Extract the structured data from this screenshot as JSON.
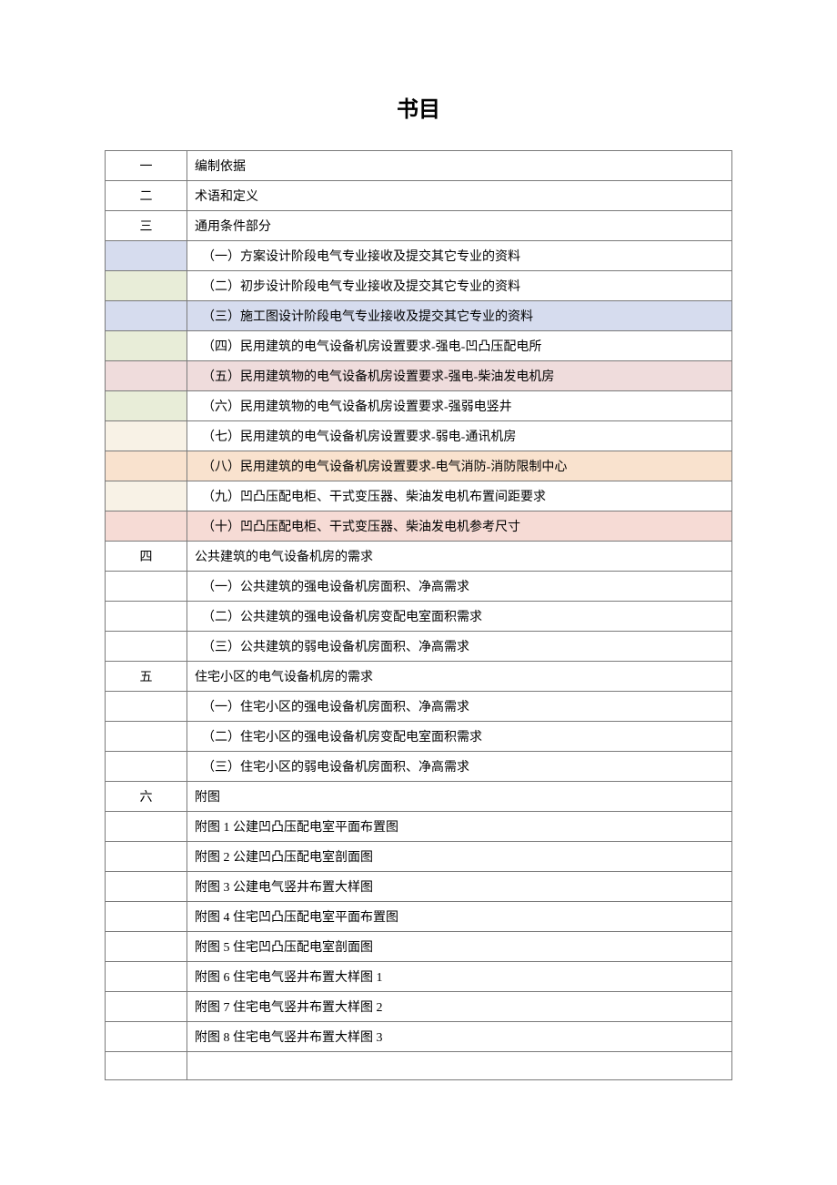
{
  "title": "书目",
  "rows": [
    {
      "index": "一",
      "content": "编制依据",
      "indent": false,
      "bgIndex": "",
      "bgContent": ""
    },
    {
      "index": "二",
      "content": "术语和定义",
      "indent": false,
      "bgIndex": "",
      "bgContent": ""
    },
    {
      "index": "三",
      "content": "通用条件部分",
      "indent": false,
      "bgIndex": "",
      "bgContent": ""
    },
    {
      "index": "",
      "content": "（一）方案设计阶段电气专业接收及提交其它专业的资料",
      "indent": true,
      "bgIndex": "bg-blue",
      "bgContent": ""
    },
    {
      "index": "",
      "content": "（二）初步设计阶段电气专业接收及提交其它专业的资料",
      "indent": true,
      "bgIndex": "bg-lightgreen",
      "bgContent": ""
    },
    {
      "index": "",
      "content": "（三）施工图设计阶段电气专业接收及提交其它专业的资料",
      "indent": true,
      "bgIndex": "bg-blue",
      "bgContent": "bg-blue"
    },
    {
      "index": "",
      "content": "（四）民用建筑的电气设备机房设置要求-强电-凹凸压配电所",
      "indent": true,
      "bgIndex": "bg-lightgreen",
      "bgContent": ""
    },
    {
      "index": "",
      "content": "（五）民用建筑物的电气设备机房设置要求-强电-柴油发电机房",
      "indent": true,
      "bgIndex": "bg-pink",
      "bgContent": "bg-pink"
    },
    {
      "index": "",
      "content": "（六）民用建筑物的电气设备机房设置要求-强弱电竖井",
      "indent": true,
      "bgIndex": "bg-lightgreen",
      "bgContent": ""
    },
    {
      "index": "",
      "content": "（七）民用建筑的电气设备机房设置要求-弱电-通讯机房",
      "indent": true,
      "bgIndex": "bg-cream",
      "bgContent": ""
    },
    {
      "index": "",
      "content": "（八）民用建筑的电气设备机房设置要求-电气消防-消防限制中心",
      "indent": true,
      "bgIndex": "bg-orange",
      "bgContent": "bg-orange"
    },
    {
      "index": "",
      "content": "（九）凹凸压配电柜、干式变压器、柴油发电机布置间距要求",
      "indent": true,
      "bgIndex": "bg-cream",
      "bgContent": ""
    },
    {
      "index": "",
      "content": "（十）凹凸压配电柜、干式变压器、柴油发电机参考尺寸",
      "indent": true,
      "bgIndex": "bg-salmon",
      "bgContent": "bg-salmon"
    },
    {
      "index": "四",
      "content": "公共建筑的电气设备机房的需求",
      "indent": false,
      "bgIndex": "",
      "bgContent": ""
    },
    {
      "index": "",
      "content": "（一）公共建筑的强电设备机房面积、净高需求",
      "indent": true,
      "bgIndex": "",
      "bgContent": ""
    },
    {
      "index": "",
      "content": "（二）公共建筑的强电设备机房变配电室面积需求",
      "indent": true,
      "bgIndex": "",
      "bgContent": ""
    },
    {
      "index": "",
      "content": "（三）公共建筑的弱电设备机房面积、净高需求",
      "indent": true,
      "bgIndex": "",
      "bgContent": ""
    },
    {
      "index": "五",
      "content": "住宅小区的电气设备机房的需求",
      "indent": false,
      "bgIndex": "",
      "bgContent": ""
    },
    {
      "index": "",
      "content": "（一）住宅小区的强电设备机房面积、净高需求",
      "indent": true,
      "bgIndex": "",
      "bgContent": ""
    },
    {
      "index": "",
      "content": "（二）住宅小区的强电设备机房变配电室面积需求",
      "indent": true,
      "bgIndex": "",
      "bgContent": ""
    },
    {
      "index": "",
      "content": "（三）住宅小区的弱电设备机房面积、净高需求",
      "indent": true,
      "bgIndex": "",
      "bgContent": ""
    },
    {
      "index": "六",
      "content": "附图",
      "indent": false,
      "bgIndex": "",
      "bgContent": ""
    },
    {
      "index": "",
      "content": "附图 1 公建凹凸压配电室平面布置图",
      "indent": false,
      "bgIndex": "",
      "bgContent": ""
    },
    {
      "index": "",
      "content": "附图 2 公建凹凸压配电室剖面图",
      "indent": false,
      "bgIndex": "",
      "bgContent": ""
    },
    {
      "index": "",
      "content": "附图 3 公建电气竖井布置大样图",
      "indent": false,
      "bgIndex": "",
      "bgContent": ""
    },
    {
      "index": "",
      "content": "附图 4 住宅凹凸压配电室平面布置图",
      "indent": false,
      "bgIndex": "",
      "bgContent": ""
    },
    {
      "index": "",
      "content": "附图 5 住宅凹凸压配电室剖面图",
      "indent": false,
      "bgIndex": "",
      "bgContent": ""
    },
    {
      "index": "",
      "content": "附图 6 住宅电气竖井布置大样图 1",
      "indent": false,
      "bgIndex": "",
      "bgContent": ""
    },
    {
      "index": "",
      "content": "附图 7 住宅电气竖井布置大样图 2",
      "indent": false,
      "bgIndex": "",
      "bgContent": ""
    },
    {
      "index": "",
      "content": "附图 8 住宅电气竖井布置大样图 3",
      "indent": false,
      "bgIndex": "",
      "bgContent": ""
    },
    {
      "index": "",
      "content": "",
      "indent": false,
      "bgIndex": "",
      "bgContent": ""
    }
  ]
}
